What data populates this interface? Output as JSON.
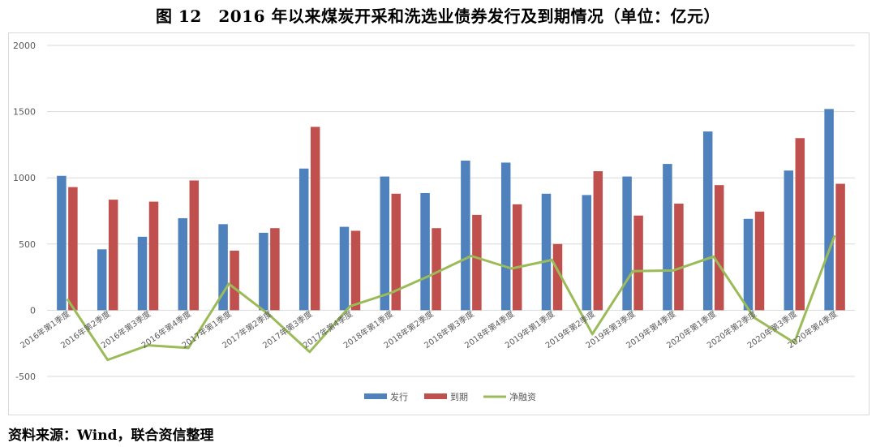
{
  "title": "图 12　2016 年以来煤炭开采和洗选业债券发行及到期情况（单位：亿元）",
  "source": "资料来源：Wind，联合资信整理",
  "chart_data": {
    "type": "bar",
    "categories": [
      "2016年第1季度",
      "2016年第2季度",
      "2016年第3季度",
      "2016年第4季度",
      "2017年第1季度",
      "2017年第2季度",
      "2017年第3季度",
      "2017年第4季度",
      "2018年第1季度",
      "2018年第2季度",
      "2018年第3季度",
      "2018年第4季度",
      "2019年第1季度",
      "2019年第2季度",
      "2019年第3季度",
      "2019年第4季度",
      "2020年第1季度",
      "2020年第2季度",
      "2020年第3季度",
      "2020年第4季度"
    ],
    "series": [
      {
        "name": "发行",
        "type": "bar",
        "color": "#4f81bd",
        "values": [
          1015,
          460,
          555,
          695,
          650,
          585,
          1070,
          630,
          1010,
          885,
          1130,
          1115,
          880,
          870,
          1010,
          1105,
          1350,
          690,
          1055,
          1520
        ]
      },
      {
        "name": "到期",
        "type": "bar",
        "color": "#c0504d",
        "values": [
          930,
          835,
          820,
          980,
          450,
          620,
          1385,
          600,
          880,
          620,
          720,
          800,
          500,
          1050,
          715,
          805,
          945,
          745,
          1300,
          955
        ]
      },
      {
        "name": "净融资",
        "type": "line",
        "color": "#9bbb59",
        "values": [
          85,
          -375,
          -265,
          -285,
          200,
          -35,
          -315,
          30,
          130,
          265,
          410,
          315,
          380,
          -180,
          295,
          300,
          405,
          -55,
          -245,
          565
        ]
      }
    ],
    "ylim": [
      -500,
      2000
    ],
    "yticks": [
      -500,
      0,
      500,
      1000,
      1500,
      2000
    ],
    "grid": true,
    "legend": "bottom"
  }
}
